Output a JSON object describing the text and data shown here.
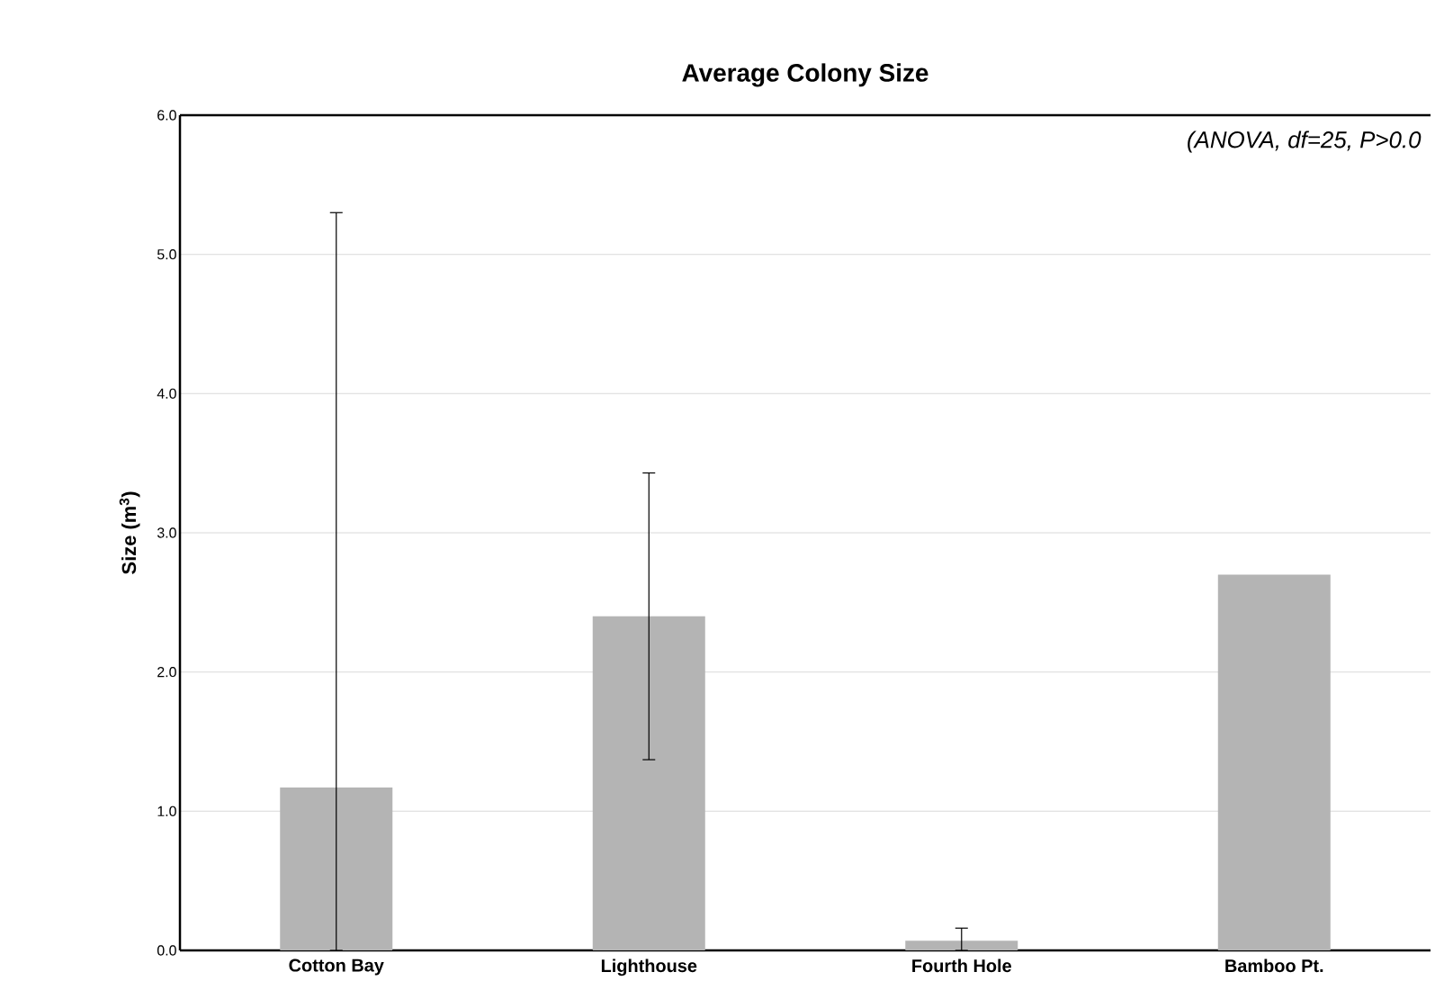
{
  "chart_data": {
    "type": "bar",
    "title": "Average Colony Size",
    "ylabel": "Size (m$^{3}$)",
    "categories": [
      "Cotton Bay",
      "Lighthouse",
      "Fourth Hole",
      "Bamboo Pt."
    ],
    "values": [
      1.17,
      2.4,
      0.07,
      2.7
    ],
    "errors": [
      [
        0,
        5.3
      ],
      1.03,
      [
        0,
        0.16
      ],
      null
    ],
    "color": "#b4b4b4",
    "ylim": [
      0,
      6
    ],
    "yticks": [
      {
        "value": 0,
        "label": "0.0"
      },
      {
        "value": 1,
        "label": "1.0"
      },
      {
        "value": 2,
        "label": "2.0"
      },
      {
        "value": 3,
        "label": "3.0"
      },
      {
        "value": 4,
        "label": "4.0"
      },
      {
        "value": 5,
        "label": "5.0"
      },
      {
        "value": 6,
        "label": "6.0"
      }
    ],
    "grid": "y",
    "annotations": [
      "(ANOVA, df=25, P>0.0"
    ]
  }
}
